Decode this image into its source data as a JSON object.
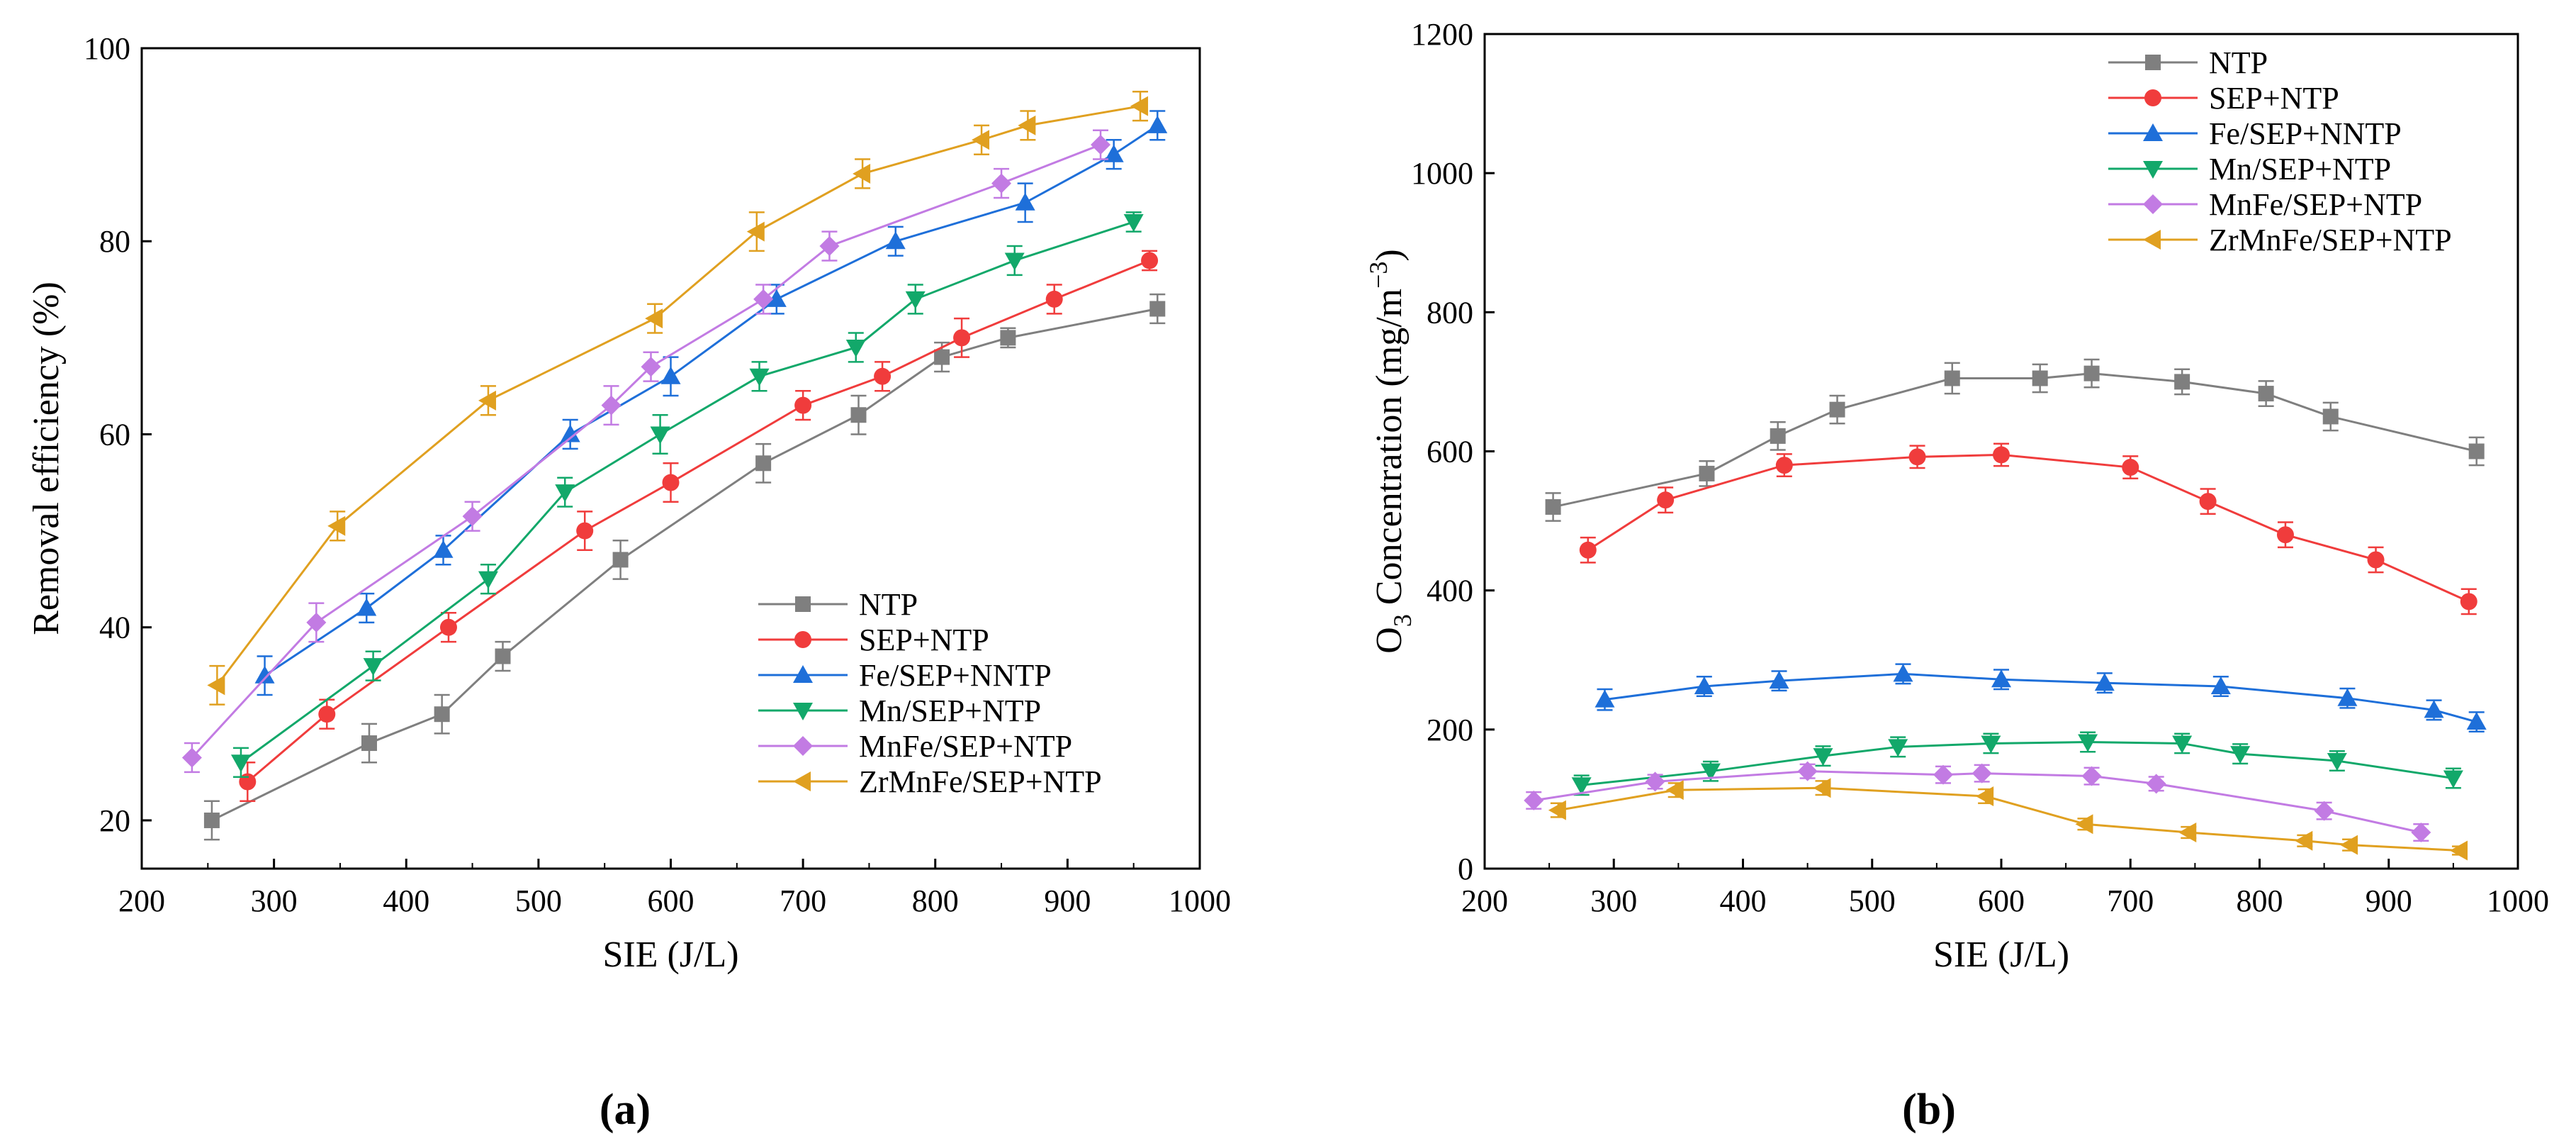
{
  "figure": {
    "panel_a_label": "(a)",
    "panel_b_label": "(b)"
  },
  "chart_data": [
    {
      "type": "line",
      "panel": "a",
      "title": "",
      "xlabel": "SIE (J/L)",
      "ylabel": "Removal efficiency (%)",
      "xlim": [
        200,
        1000
      ],
      "ylim": [
        15,
        100
      ],
      "xticks": [
        "200",
        "300",
        "400",
        "500",
        "600",
        "700",
        "800",
        "900",
        "1000"
      ],
      "yticks": [
        "20",
        "40",
        "60",
        "80",
        "100"
      ],
      "grid": false,
      "legend_position": "bottom-right",
      "series": [
        {
          "name": "NTP",
          "color": "#7f7f7f",
          "marker": "square",
          "x": [
            253,
            372,
            427,
            473,
            562,
            670,
            742,
            805,
            855,
            968
          ],
          "y": [
            20,
            28,
            31,
            37,
            47,
            57,
            62,
            68,
            70,
            73
          ],
          "err": [
            2,
            2,
            2,
            1.5,
            2,
            2,
            2,
            1.5,
            1,
            1.5
          ]
        },
        {
          "name": "SEP+NTP",
          "color": "#f03c3c",
          "marker": "circle",
          "x": [
            280,
            340,
            432,
            535,
            600,
            700,
            760,
            820,
            890,
            962
          ],
          "y": [
            24,
            31,
            40,
            50,
            55,
            63,
            66,
            70,
            74,
            78
          ],
          "err": [
            2,
            1.5,
            1.5,
            2,
            2,
            1.5,
            1.5,
            2,
            1.5,
            1
          ]
        },
        {
          "name": "Fe/SEP+NNTP",
          "color": "#1e6fd9",
          "marker": "triangle-up",
          "x": [
            293,
            370,
            428,
            524,
            600,
            680,
            770,
            868,
            935,
            968
          ],
          "y": [
            35,
            42,
            48,
            60,
            66,
            74,
            80,
            84,
            89,
            92
          ],
          "err": [
            2,
            1.5,
            1.5,
            1.5,
            2,
            1.5,
            1.5,
            2,
            1.5,
            1.5
          ]
        },
        {
          "name": "Mn/SEP+NTP",
          "color": "#12a86a",
          "marker": "triangle-down",
          "x": [
            275,
            375,
            462,
            520,
            592,
            667,
            740,
            785,
            860,
            950
          ],
          "y": [
            26,
            36,
            45,
            54,
            60,
            66,
            69,
            74,
            78,
            82
          ],
          "err": [
            1.5,
            1.5,
            1.5,
            1.5,
            2,
            1.5,
            1.5,
            1.5,
            1.5,
            1
          ]
        },
        {
          "name": "MnFe/SEP+NTP",
          "color": "#c27be3",
          "marker": "diamond",
          "x": [
            238,
            332,
            450,
            555,
            585,
            670,
            720,
            850,
            925
          ],
          "y": [
            26.5,
            40.5,
            51.5,
            63,
            67,
            74,
            79.5,
            86,
            90
          ],
          "err": [
            1.5,
            2,
            1.5,
            2,
            1.5,
            1.5,
            1.5,
            1.5,
            1.5
          ]
        },
        {
          "name": "ZrMnFe/SEP+NTP",
          "color": "#e0a020",
          "marker": "triangle-left",
          "x": [
            257,
            348,
            462,
            588,
            665,
            745,
            835,
            870,
            955
          ],
          "y": [
            34,
            50.5,
            63.5,
            72,
            81,
            87,
            90.5,
            92,
            94
          ],
          "err": [
            2,
            1.5,
            1.5,
            1.5,
            2,
            1.5,
            1.5,
            1.5,
            1.5
          ]
        }
      ]
    },
    {
      "type": "line",
      "panel": "b",
      "title": "",
      "xlabel": "SIE (J/L)",
      "ylabel_prefix": "O",
      "ylabel_sub": "3",
      "ylabel_mid": " Concentration  (mg/m",
      "ylabel_sup": "−3",
      "ylabel_suffix": ")",
      "xlim": [
        200,
        1000
      ],
      "ylim": [
        0,
        1200
      ],
      "xticks": [
        "200",
        "300",
        "400",
        "500",
        "600",
        "700",
        "800",
        "900",
        "1000"
      ],
      "yticks": [
        "0",
        "200",
        "400",
        "600",
        "800",
        "1000",
        "1200"
      ],
      "grid": false,
      "legend_position": "top-right",
      "series": [
        {
          "name": "NTP",
          "color": "#7f7f7f",
          "marker": "square",
          "x": [
            253,
            372,
            427,
            473,
            562,
            630,
            670,
            740,
            805,
            855,
            968
          ],
          "y": [
            520,
            568,
            622,
            660,
            705,
            705,
            712,
            700,
            683,
            650,
            600
          ],
          "err": [
            20,
            18,
            20,
            20,
            22,
            20,
            20,
            18,
            18,
            20,
            20
          ]
        },
        {
          "name": "SEP+NTP",
          "color": "#f03c3c",
          "marker": "circle",
          "x": [
            280,
            340,
            432,
            535,
            600,
            700,
            760,
            820,
            890,
            962
          ],
          "y": [
            458,
            530,
            580,
            592,
            595,
            577,
            528,
            480,
            444,
            384
          ],
          "err": [
            18,
            18,
            16,
            16,
            16,
            16,
            18,
            18,
            18,
            18
          ]
        },
        {
          "name": "Fe/SEP+NNTP",
          "color": "#1e6fd9",
          "marker": "triangle-up",
          "x": [
            293,
            370,
            428,
            524,
            600,
            680,
            770,
            868,
            935,
            968
          ],
          "y": [
            243,
            262,
            270,
            280,
            272,
            267,
            262,
            245,
            228,
            211
          ],
          "err": [
            15,
            14,
            14,
            14,
            14,
            14,
            14,
            14,
            14,
            14
          ]
        },
        {
          "name": "Mn/SEP+NTP",
          "color": "#12a86a",
          "marker": "triangle-down",
          "x": [
            275,
            375,
            462,
            520,
            592,
            667,
            740,
            785,
            860,
            950
          ],
          "y": [
            120,
            140,
            162,
            175,
            180,
            182,
            180,
            165,
            155,
            130
          ],
          "err": [
            14,
            14,
            14,
            14,
            14,
            14,
            14,
            14,
            14,
            14
          ]
        },
        {
          "name": "MnFe/SEP+NTP",
          "color": "#c27be3",
          "marker": "diamond",
          "x": [
            238,
            332,
            450,
            555,
            585,
            670,
            720,
            850,
            925
          ],
          "y": [
            98,
            125,
            140,
            135,
            137,
            133,
            122,
            83,
            52
          ],
          "err": [
            12,
            10,
            10,
            12,
            12,
            12,
            10,
            12,
            12
          ]
        },
        {
          "name": "ZrMnFe/SEP+NTP",
          "color": "#e0a020",
          "marker": "triangle-left",
          "x": [
            257,
            348,
            462,
            588,
            665,
            745,
            835,
            870,
            955
          ],
          "y": [
            84,
            113,
            116,
            104,
            64,
            52,
            40,
            34,
            26
          ],
          "err": [
            10,
            10,
            10,
            10,
            8,
            8,
            8,
            8,
            6
          ]
        }
      ]
    }
  ]
}
